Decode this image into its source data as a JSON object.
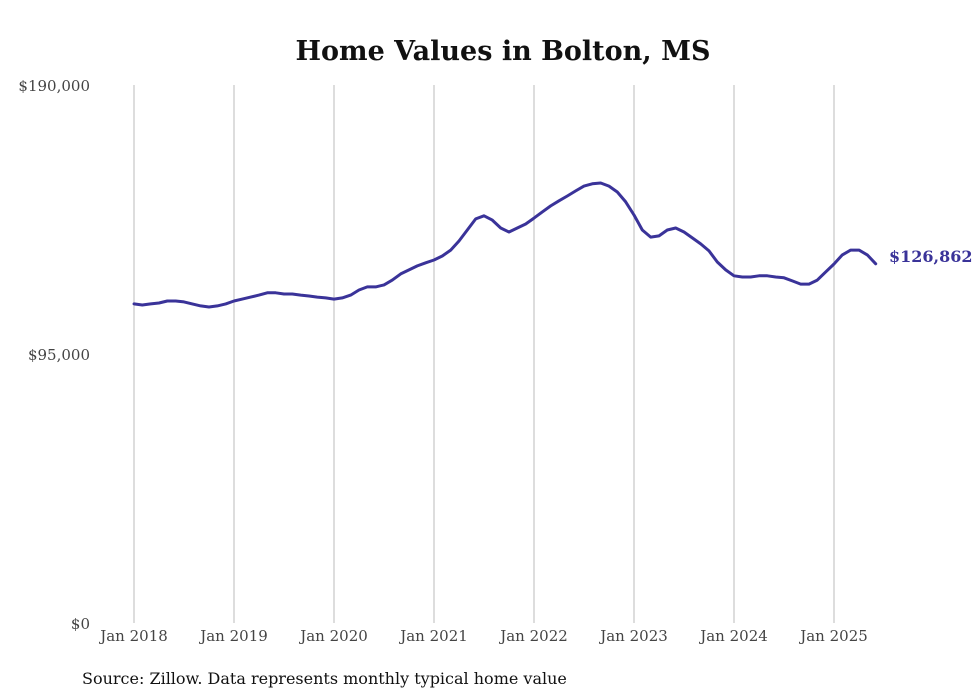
{
  "chart_data": {
    "type": "line",
    "title": "Home Values in Bolton, MS",
    "xlabel": "",
    "ylabel": "",
    "ylim": [
      0,
      190000
    ],
    "y_ticks": [
      0,
      95000,
      190000
    ],
    "y_tick_labels": [
      "$0",
      "$95,000",
      "$190,000"
    ],
    "x_tick_labels": [
      "Jan 2018",
      "Jan 2019",
      "Jan 2020",
      "Jan 2021",
      "Jan 2022",
      "Jan 2023",
      "Jan 2024",
      "Jan 2025"
    ],
    "x_start": "Jan 2018",
    "x_interval": "monthly",
    "grid": "vertical",
    "series": [
      {
        "name": "Typical home value",
        "color": "#3a3399",
        "values": [
          112700,
          112300,
          112700,
          113000,
          113700,
          113700,
          113400,
          112700,
          112000,
          111600,
          112000,
          112700,
          113700,
          114400,
          115100,
          115800,
          116600,
          116600,
          116200,
          116200,
          115800,
          115500,
          115100,
          114800,
          114400,
          114800,
          115800,
          117600,
          118700,
          118700,
          119400,
          121100,
          123300,
          124700,
          126100,
          127200,
          128200,
          129600,
          131700,
          134900,
          138800,
          142700,
          143800,
          142300,
          139500,
          138100,
          139500,
          140900,
          143000,
          145200,
          147300,
          149100,
          150800,
          152600,
          154300,
          155100,
          155400,
          154300,
          152200,
          148700,
          144100,
          138800,
          136300,
          136700,
          138800,
          139500,
          138100,
          136000,
          133900,
          131400,
          127500,
          124700,
          122600,
          122200,
          122200,
          122600,
          122600,
          122200,
          121900,
          120800,
          119700,
          119700,
          121100,
          124000,
          126800,
          130000,
          131700,
          131700,
          130000,
          126862
        ]
      }
    ],
    "end_label": "$126,862",
    "source": "Source: Zillow. Data represents monthly typical home value"
  }
}
